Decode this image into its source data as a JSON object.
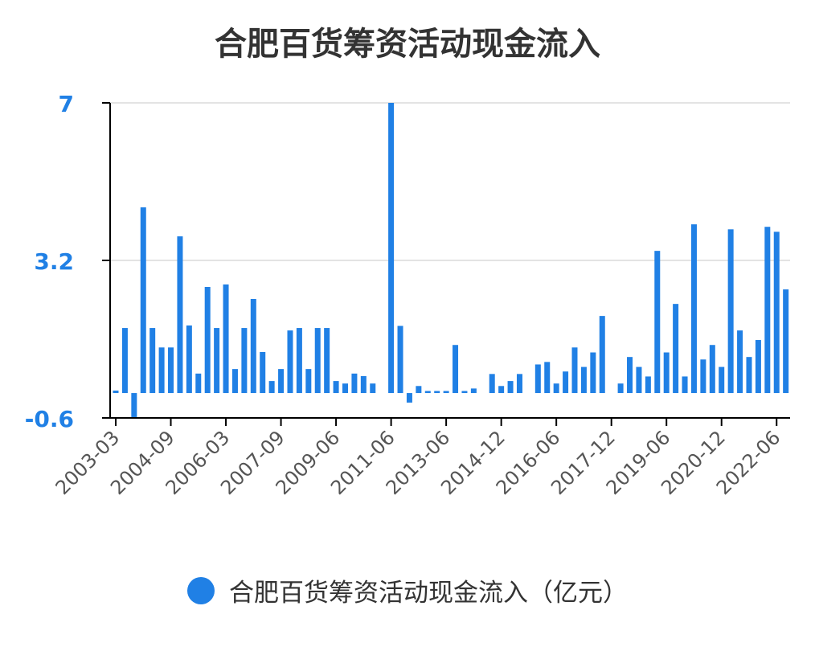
{
  "chart_data": {
    "type": "bar",
    "title": "合肥百货筹资活动现金流入",
    "xlabel": "",
    "ylabel": "",
    "ylim": [
      -0.6,
      7
    ],
    "yticks": [
      7,
      3.2,
      -0.6
    ],
    "grid": true,
    "legend_position": "bottom",
    "x_tick_labels": [
      "2003-03",
      "2004-09",
      "2006-03",
      "2007-09",
      "2009-06",
      "2011-06",
      "2013-06",
      "2014-12",
      "2016-06",
      "2017-12",
      "2019-06",
      "2020-12",
      "2022-06"
    ],
    "x_tick_every": 6,
    "series": [
      {
        "name": "合肥百货筹资活动现金流入（亿元）",
        "color": "#2080E5",
        "values": [
          0.06,
          1.57,
          -0.58,
          4.48,
          1.57,
          1.1,
          1.1,
          3.78,
          1.63,
          0.47,
          2.56,
          1.57,
          2.62,
          0.58,
          1.57,
          2.27,
          0.99,
          0.29,
          0.58,
          1.51,
          1.57,
          0.58,
          1.57,
          1.57,
          0.29,
          0.23,
          0.47,
          0.41,
          0.23,
          null,
          7.0,
          1.62,
          -0.23,
          0.17,
          0.05,
          0.05,
          0.05,
          1.16,
          0.05,
          0.11,
          null,
          0.46,
          0.17,
          0.29,
          0.46,
          null,
          0.69,
          0.75,
          0.23,
          0.52,
          1.1,
          0.63,
          0.98,
          1.86,
          null,
          0.23,
          0.87,
          0.63,
          0.4,
          3.43,
          0.98,
          2.15,
          0.4,
          4.07,
          0.81,
          1.16,
          0.63,
          3.95,
          1.51,
          0.87,
          1.28,
          4.01,
          3.89,
          2.5
        ]
      }
    ]
  }
}
